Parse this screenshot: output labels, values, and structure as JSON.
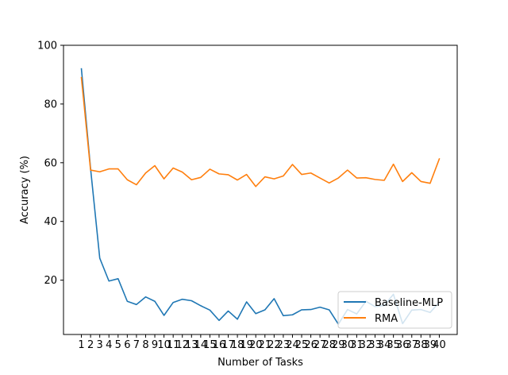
{
  "chart_data": {
    "type": "line",
    "title": "",
    "xlabel": "Number of Tasks",
    "ylabel": "Accuracy (%)",
    "x": [
      1,
      2,
      3,
      4,
      5,
      6,
      7,
      8,
      9,
      10,
      11,
      12,
      13,
      14,
      15,
      16,
      17,
      18,
      19,
      20,
      21,
      22,
      23,
      24,
      25,
      26,
      27,
      28,
      29,
      30,
      31,
      32,
      33,
      34,
      35,
      36,
      37,
      38,
      39,
      40
    ],
    "x_tick_labels": [
      "1",
      "2",
      "3",
      "4",
      "5",
      "6",
      "7",
      "8",
      "9",
      "10",
      "11",
      "12",
      "13",
      "14",
      "15",
      "16",
      "17",
      "18",
      "19",
      "20",
      "21",
      "22",
      "23",
      "24",
      "25",
      "26",
      "27",
      "28",
      "29",
      "30",
      "31",
      "32",
      "33",
      "34",
      "35",
      "36",
      "37",
      "38",
      "39",
      "40"
    ],
    "xlim": [
      -0.95,
      41.95
    ],
    "ylim": [
      1.5,
      100
    ],
    "y_ticks": [
      20,
      40,
      60,
      80,
      100
    ],
    "y_tick_labels": [
      "20",
      "40",
      "60",
      "80",
      "100"
    ],
    "grid": false,
    "legend_position": "lower-right",
    "series": [
      {
        "name": "Baseline-MLP",
        "color": "#1f77b4",
        "values": [
          92.0,
          58.0,
          27.5,
          19.7,
          20.5,
          12.8,
          11.7,
          14.3,
          12.8,
          8.0,
          12.4,
          13.5,
          13.0,
          11.3,
          9.8,
          6.3,
          9.5,
          6.7,
          12.6,
          8.6,
          9.9,
          13.7,
          7.9,
          8.2,
          9.9,
          10.0,
          10.8,
          9.9,
          5.0,
          10.0,
          8.5,
          12.8,
          11.0,
          11.4,
          15.2,
          5.2,
          9.8,
          10.0,
          9.0,
          12.5
        ]
      },
      {
        "name": "RMA",
        "color": "#ff7f0e",
        "values": [
          89.0,
          57.5,
          56.9,
          57.9,
          57.9,
          54.2,
          52.5,
          56.5,
          59.0,
          54.5,
          58.2,
          56.8,
          54.2,
          55.0,
          57.8,
          56.2,
          55.9,
          54.1,
          56.0,
          51.9,
          55.2,
          54.5,
          55.5,
          59.4,
          56.0,
          56.5,
          54.8,
          53.1,
          54.8,
          57.5,
          54.8,
          54.9,
          54.3,
          54.0,
          59.5,
          53.6,
          56.6,
          53.6,
          53.0,
          61.3
        ]
      }
    ]
  }
}
